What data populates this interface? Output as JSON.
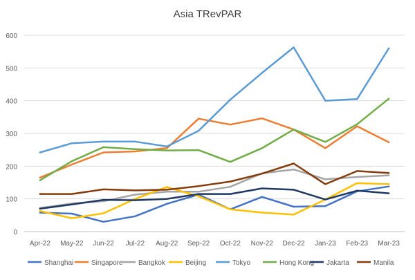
{
  "chart_data": {
    "type": "line",
    "title": "Asia TRevPAR",
    "xlabel": "",
    "ylabel": "",
    "ylim": [
      0,
      600
    ],
    "yticks": [
      0,
      100,
      200,
      300,
      400,
      500,
      600
    ],
    "grid": true,
    "legend_position": "bottom",
    "categories": [
      "Apr-22",
      "May-22",
      "Jun-22",
      "Jul-22",
      "Aug-22",
      "Sep-22",
      "Oct-22",
      "Nov-22",
      "Dec-22",
      "Jan-23",
      "Feb-23",
      "Mar-23"
    ],
    "series": [
      {
        "name": "Shanghai",
        "color": "#4472C4",
        "values": [
          58,
          55,
          30,
          47,
          85,
          113,
          68,
          106,
          76,
          78,
          123,
          138
        ]
      },
      {
        "name": "Singapore",
        "color": "#ED7D31",
        "values": [
          165,
          205,
          242,
          245,
          255,
          345,
          327,
          346,
          312,
          255,
          322,
          273
        ]
      },
      {
        "name": "Bangkok",
        "color": "#A5A5A5",
        "values": [
          72,
          86,
          93,
          113,
          122,
          122,
          137,
          178,
          190,
          160,
          167,
          172
        ]
      },
      {
        "name": "Beijing",
        "color": "#FFC000",
        "values": [
          63,
          41,
          56,
          100,
          136,
          108,
          68,
          58,
          52,
          98,
          148,
          145
        ]
      },
      {
        "name": "Tokyo",
        "color": "#5B9BD5",
        "values": [
          242,
          270,
          275,
          275,
          260,
          308,
          403,
          485,
          563,
          400,
          405,
          560
        ]
      },
      {
        "name": "Hong Kong",
        "color": "#70AD47",
        "values": [
          157,
          215,
          258,
          252,
          248,
          249,
          213,
          255,
          312,
          274,
          328,
          406
        ]
      },
      {
        "name": "Jakarta",
        "color": "#1F3864",
        "values": [
          70,
          83,
          97,
          96,
          100,
          115,
          115,
          132,
          128,
          98,
          125,
          117
        ]
      },
      {
        "name": "Manila",
        "color": "#843C0C",
        "values": [
          115,
          115,
          129,
          126,
          128,
          139,
          153,
          177,
          208,
          145,
          185,
          179
        ]
      }
    ]
  }
}
